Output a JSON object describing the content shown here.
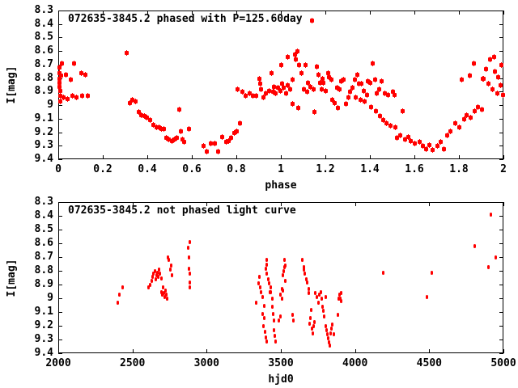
{
  "app": {
    "background_color": "#ffffff",
    "axis_color": "#000000",
    "point_color": "#ff0000"
  },
  "chart_data": [
    {
      "type": "scatter",
      "title": "072635-3845.2 phased with P=125.60day",
      "xlabel": "phase",
      "ylabel": "I[mag]",
      "xlim": [
        0,
        2
      ],
      "ylim": [
        8.3,
        9.4
      ],
      "y_axis_inverted_magnitude_scale": true,
      "grid": false,
      "legend": "none",
      "xticks": [
        "0",
        "0.2",
        "0.4",
        "0.6",
        "0.8",
        "1",
        "1.2",
        "1.4",
        "1.6",
        "1.8",
        "2"
      ],
      "xtick_values": [
        0,
        0.2,
        0.4,
        0.6,
        0.8,
        1,
        1.2,
        1.4,
        1.6,
        1.8,
        2
      ],
      "yticks": [
        "8.3",
        "8.4",
        "8.5",
        "8.6",
        "8.7",
        "8.8",
        "8.9",
        "9",
        "9.1",
        "9.2",
        "9.3",
        "9.4"
      ],
      "ytick_values": [
        8.3,
        8.4,
        8.5,
        8.6,
        8.7,
        8.8,
        8.9,
        9,
        9.1,
        9.2,
        9.3,
        9.4
      ],
      "points": [
        [
          0.004,
          8.72
        ],
        [
          0.004,
          8.76
        ],
        [
          0.004,
          8.8
        ],
        [
          0.005,
          8.83
        ],
        [
          0.005,
          8.86
        ],
        [
          0.006,
          8.89
        ],
        [
          0.007,
          8.93
        ],
        [
          0.008,
          8.97
        ],
        [
          0.012,
          8.78
        ],
        [
          0.015,
          8.69
        ],
        [
          0.02,
          8.94
        ],
        [
          0.033,
          8.77
        ],
        [
          0.04,
          8.95
        ],
        [
          0.055,
          8.81
        ],
        [
          0.06,
          8.93
        ],
        [
          0.07,
          8.69
        ],
        [
          0.08,
          8.94
        ],
        [
          0.1,
          8.76
        ],
        [
          0.105,
          8.93
        ],
        [
          0.12,
          8.77
        ],
        [
          0.13,
          8.93
        ],
        [
          0.305,
          8.61
        ],
        [
          0.32,
          8.98
        ],
        [
          0.33,
          8.96
        ],
        [
          0.345,
          8.97
        ],
        [
          0.36,
          9.05
        ],
        [
          0.372,
          9.07
        ],
        [
          0.385,
          9.08
        ],
        [
          0.398,
          9.09
        ],
        [
          0.41,
          9.11
        ],
        [
          0.425,
          9.14
        ],
        [
          0.44,
          9.16
        ],
        [
          0.452,
          9.16
        ],
        [
          0.463,
          9.17
        ],
        [
          0.473,
          9.17
        ],
        [
          0.483,
          9.24
        ],
        [
          0.495,
          9.25
        ],
        [
          0.508,
          9.26
        ],
        [
          0.52,
          9.25
        ],
        [
          0.532,
          9.24
        ],
        [
          0.54,
          9.03
        ],
        [
          0.548,
          9.19
        ],
        [
          0.557,
          9.25
        ],
        [
          0.565,
          9.27
        ],
        [
          0.585,
          9.17
        ],
        [
          0.652,
          9.3
        ],
        [
          0.665,
          9.34
        ],
        [
          0.685,
          9.28
        ],
        [
          0.7,
          9.28
        ],
        [
          0.715,
          9.34
        ],
        [
          0.735,
          9.23
        ],
        [
          0.752,
          9.27
        ],
        [
          0.762,
          9.26
        ],
        [
          0.775,
          9.24
        ],
        [
          0.788,
          9.2
        ],
        [
          0.8,
          9.19
        ],
        [
          0.813,
          9.13
        ],
        [
          0.805,
          8.88
        ],
        [
          0.825,
          8.9
        ],
        [
          0.84,
          8.93
        ],
        [
          0.858,
          8.91
        ],
        [
          0.872,
          8.93
        ],
        [
          0.888,
          8.93
        ],
        [
          0.9,
          8.8
        ],
        [
          0.905,
          8.84
        ],
        [
          0.91,
          8.88
        ],
        [
          0.92,
          8.94
        ],
        [
          0.93,
          8.91
        ],
        [
          0.945,
          8.89
        ],
        [
          0.955,
          8.76
        ],
        [
          0.962,
          8.9
        ],
        [
          0.968,
          8.86
        ],
        [
          0.975,
          8.91
        ],
        [
          0.985,
          8.87
        ],
        [
          0.995,
          8.89
        ],
        [
          1.0,
          8.7
        ],
        [
          1.005,
          8.84
        ],
        [
          1.012,
          8.87
        ],
        [
          1.02,
          8.91
        ],
        [
          1.028,
          8.85
        ],
        [
          1.03,
          8.64
        ],
        [
          1.04,
          8.88
        ],
        [
          1.05,
          8.81
        ],
        [
          1.052,
          8.99
        ],
        [
          1.06,
          8.62
        ],
        [
          1.065,
          8.66
        ],
        [
          1.072,
          8.6
        ],
        [
          1.075,
          9.02
        ],
        [
          1.08,
          8.7
        ],
        [
          1.09,
          8.76
        ],
        [
          1.1,
          8.88
        ],
        [
          1.108,
          8.7
        ],
        [
          1.115,
          8.9
        ],
        [
          1.12,
          8.83
        ],
        [
          1.13,
          8.86
        ],
        [
          1.138,
          8.37
        ],
        [
          1.145,
          8.88
        ],
        [
          1.15,
          9.05
        ],
        [
          1.16,
          8.71
        ],
        [
          1.168,
          8.77
        ],
        [
          1.175,
          8.83
        ],
        [
          1.18,
          8.88
        ],
        [
          1.185,
          8.8
        ],
        [
          1.19,
          8.83
        ],
        [
          1.2,
          8.89
        ],
        [
          1.21,
          8.76
        ],
        [
          1.215,
          8.79
        ],
        [
          1.225,
          8.81
        ],
        [
          1.23,
          8.96
        ],
        [
          1.24,
          8.98
        ],
        [
          1.25,
          8.87
        ],
        [
          1.255,
          9.02
        ],
        [
          1.26,
          8.88
        ],
        [
          1.27,
          8.82
        ],
        [
          1.28,
          8.81
        ],
        [
          1.29,
          8.99
        ],
        [
          1.3,
          8.94
        ],
        [
          1.31,
          8.9
        ],
        [
          1.32,
          8.87
        ],
        [
          1.33,
          8.81
        ],
        [
          1.335,
          8.94
        ],
        [
          1.34,
          8.77
        ],
        [
          1.35,
          8.84
        ],
        [
          1.355,
          8.96
        ],
        [
          1.36,
          8.84
        ],
        [
          1.37,
          8.89
        ],
        [
          1.375,
          8.97
        ],
        [
          1.385,
          8.92
        ],
        [
          1.39,
          8.82
        ],
        [
          1.4,
          8.83
        ],
        [
          1.405,
          9.01
        ],
        [
          1.41,
          8.69
        ],
        [
          1.42,
          8.81
        ],
        [
          1.425,
          9.04
        ],
        [
          1.43,
          8.91
        ],
        [
          1.44,
          8.88
        ],
        [
          1.445,
          9.08
        ],
        [
          1.45,
          8.82
        ],
        [
          1.457,
          9.11
        ],
        [
          1.465,
          8.91
        ],
        [
          1.472,
          9.13
        ],
        [
          1.48,
          8.92
        ],
        [
          1.49,
          9.15
        ],
        [
          1.5,
          8.9
        ],
        [
          1.51,
          8.92
        ],
        [
          1.512,
          9.16
        ],
        [
          1.52,
          9.24
        ],
        [
          1.535,
          9.22
        ],
        [
          1.545,
          9.04
        ],
        [
          1.555,
          9.25
        ],
        [
          1.57,
          9.23
        ],
        [
          1.58,
          9.26
        ],
        [
          1.6,
          9.28
        ],
        [
          1.62,
          9.27
        ],
        [
          1.635,
          9.3
        ],
        [
          1.65,
          9.32
        ],
        [
          1.665,
          9.29
        ],
        [
          1.68,
          9.33
        ],
        [
          1.7,
          9.3
        ],
        [
          1.715,
          9.27
        ],
        [
          1.73,
          9.32
        ],
        [
          1.745,
          9.22
        ],
        [
          1.76,
          9.19
        ],
        [
          1.78,
          9.13
        ],
        [
          1.8,
          9.16
        ],
        [
          1.82,
          9.1
        ],
        [
          1.832,
          9.07
        ],
        [
          1.85,
          9.09
        ],
        [
          1.87,
          9.04
        ],
        [
          1.882,
          9.01
        ],
        [
          1.9,
          9.03
        ],
        [
          1.81,
          8.81
        ],
        [
          1.847,
          8.78
        ],
        [
          1.865,
          8.69
        ],
        [
          1.905,
          8.8
        ],
        [
          1.91,
          8.8
        ],
        [
          1.92,
          8.73
        ],
        [
          1.93,
          8.84
        ],
        [
          1.938,
          8.66
        ],
        [
          1.95,
          8.88
        ],
        [
          1.955,
          8.64
        ],
        [
          1.96,
          8.75
        ],
        [
          1.97,
          8.91
        ],
        [
          1.975,
          8.79
        ],
        [
          1.985,
          8.85
        ],
        [
          1.99,
          8.7
        ],
        [
          1.995,
          8.92
        ]
      ]
    },
    {
      "type": "scatter",
      "title": "072635-3845.2 not phased light curve",
      "xlabel": "hjd0",
      "ylabel": "I[mag]",
      "xlim": [
        2000,
        5000
      ],
      "ylim": [
        8.3,
        9.4
      ],
      "y_axis_inverted_magnitude_scale": true,
      "grid": false,
      "legend": "none",
      "xticks": [
        "2000",
        "2500",
        "3000",
        "3500",
        "4000",
        "4500",
        "5000"
      ],
      "xtick_values": [
        2000,
        2500,
        3000,
        3500,
        4000,
        4500,
        5000
      ],
      "yticks": [
        "8.3",
        "8.4",
        "8.5",
        "8.6",
        "8.7",
        "8.8",
        "8.9",
        "9",
        "9.1",
        "9.2",
        "9.3",
        "9.4"
      ],
      "ytick_values": [
        8.3,
        8.4,
        8.5,
        8.6,
        8.7,
        8.8,
        8.9,
        9,
        9.1,
        9.2,
        9.3,
        9.4
      ],
      "points": [
        [
          2400,
          9.03
        ],
        [
          2407,
          8.97
        ],
        [
          2433,
          8.92
        ],
        [
          2605,
          8.92
        ],
        [
          2615,
          8.9
        ],
        [
          2625,
          8.87
        ],
        [
          2633,
          8.84
        ],
        [
          2640,
          8.82
        ],
        [
          2648,
          8.8
        ],
        [
          2652,
          8.86
        ],
        [
          2658,
          8.83
        ],
        [
          2665,
          8.81
        ],
        [
          2670,
          8.84
        ],
        [
          2675,
          8.79
        ],
        [
          2682,
          8.82
        ],
        [
          2690,
          8.85
        ],
        [
          2695,
          8.95
        ],
        [
          2700,
          8.97
        ],
        [
          2705,
          8.92
        ],
        [
          2710,
          8.96
        ],
        [
          2715,
          8.99
        ],
        [
          2720,
          8.94
        ],
        [
          2726,
          8.97
        ],
        [
          2730,
          9.0
        ],
        [
          2735,
          8.7
        ],
        [
          2742,
          8.72
        ],
        [
          2750,
          8.79
        ],
        [
          2757,
          8.76
        ],
        [
          2762,
          8.83
        ],
        [
          2873,
          8.63
        ],
        [
          2876,
          8.7
        ],
        [
          2879,
          8.78
        ],
        [
          2881,
          8.82
        ],
        [
          2882,
          8.59
        ],
        [
          2883,
          8.88
        ],
        [
          2885,
          8.92
        ],
        [
          3333,
          9.03
        ],
        [
          3349,
          8.89
        ],
        [
          3352,
          8.84
        ],
        [
          3356,
          8.92
        ],
        [
          3364,
          8.95
        ],
        [
          3375,
          8.99
        ],
        [
          3376,
          9.11
        ],
        [
          3378,
          9.2
        ],
        [
          3383,
          9.05
        ],
        [
          3384,
          9.14
        ],
        [
          3389,
          9.24
        ],
        [
          3395,
          9.28
        ],
        [
          3400,
          9.31
        ],
        [
          3395,
          8.78
        ],
        [
          3400,
          8.75
        ],
        [
          3403,
          8.72
        ],
        [
          3404,
          8.82
        ],
        [
          3414,
          8.86
        ],
        [
          3420,
          8.89
        ],
        [
          3421,
          8.95
        ],
        [
          3428,
          8.92
        ],
        [
          3430,
          8.95
        ],
        [
          3440,
          9.0
        ],
        [
          3442,
          9.06
        ],
        [
          3448,
          9.11
        ],
        [
          3449,
          9.16
        ],
        [
          3453,
          9.23
        ],
        [
          3458,
          9.27
        ],
        [
          3463,
          9.31
        ],
        [
          3485,
          9.16
        ],
        [
          3492,
          9.13
        ],
        [
          3497,
          8.97
        ],
        [
          3503,
          9.0
        ],
        [
          3508,
          8.93
        ],
        [
          3510,
          8.94
        ],
        [
          3513,
          8.83
        ],
        [
          3518,
          8.8
        ],
        [
          3523,
          8.72
        ],
        [
          3524,
          8.77
        ],
        [
          3526,
          8.87
        ],
        [
          3528,
          8.76
        ],
        [
          3575,
          9.12
        ],
        [
          3580,
          9.16
        ],
        [
          3640,
          8.72
        ],
        [
          3650,
          8.77
        ],
        [
          3655,
          8.79
        ],
        [
          3660,
          8.82
        ],
        [
          3667,
          8.86
        ],
        [
          3672,
          8.88
        ],
        [
          3683,
          8.93
        ],
        [
          3688,
          8.96
        ],
        [
          3692,
          9.18
        ],
        [
          3698,
          9.14
        ],
        [
          3700,
          9.08
        ],
        [
          3705,
          9.22
        ],
        [
          3710,
          9.25
        ],
        [
          3718,
          9.2
        ],
        [
          3723,
          9.17
        ],
        [
          3730,
          8.96
        ],
        [
          3740,
          8.99
        ],
        [
          3750,
          9.03
        ],
        [
          3757,
          8.97
        ],
        [
          3768,
          8.95
        ],
        [
          3773,
          9.0
        ],
        [
          3780,
          9.06
        ],
        [
          3785,
          9.09
        ],
        [
          3790,
          9.13
        ],
        [
          3800,
          9.2
        ],
        [
          3802,
          8.99
        ],
        [
          3805,
          9.23
        ],
        [
          3812,
          9.26
        ],
        [
          3818,
          9.29
        ],
        [
          3822,
          9.32
        ],
        [
          3828,
          9.34
        ],
        [
          3833,
          9.25
        ],
        [
          3840,
          9.22
        ],
        [
          3845,
          9.19
        ],
        [
          3853,
          9.26
        ],
        [
          3880,
          9.12
        ],
        [
          3885,
          9.0
        ],
        [
          3890,
          8.97
        ],
        [
          3897,
          9.0
        ],
        [
          3905,
          8.96
        ],
        [
          3906,
          9.02
        ],
        [
          4185,
          8.81
        ],
        [
          4480,
          8.99
        ],
        [
          4512,
          8.81
        ],
        [
          4805,
          8.62
        ],
        [
          4894,
          8.77
        ],
        [
          4915,
          8.39
        ],
        [
          4948,
          8.7
        ]
      ]
    }
  ]
}
